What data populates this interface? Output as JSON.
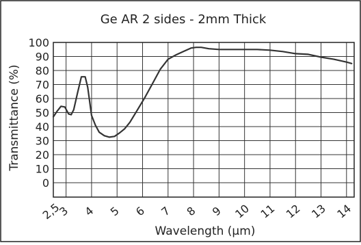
{
  "chart_data": {
    "type": "line",
    "title": "Ge AR 2 sides - 2mm Thick",
    "xlabel": "Wavelength (µm)",
    "ylabel": "Transmittance (%)",
    "xlim": [
      2.5,
      14.3
    ],
    "ylim": [
      0,
      100
    ],
    "x_ticks": [
      2.5,
      3,
      4,
      5,
      6,
      7,
      8,
      9,
      10,
      11,
      12,
      13,
      14
    ],
    "x_tick_labels": [
      "2,5",
      "3",
      "4",
      "5",
      "6",
      "7",
      "8",
      "9",
      "10",
      "11",
      "12",
      "13",
      "14"
    ],
    "y_ticks": [
      0,
      10,
      20,
      30,
      40,
      50,
      60,
      70,
      80,
      90,
      100
    ],
    "y_tick_labels": [
      "0",
      "10",
      "20",
      "30",
      "40",
      "50",
      "60",
      "70",
      "80",
      "90",
      "100"
    ],
    "grid": true,
    "series": [
      {
        "color": "#333333",
        "x": [
          2.5,
          2.65,
          2.8,
          2.95,
          3.1,
          3.2,
          3.3,
          3.45,
          3.6,
          3.75,
          3.85,
          4.0,
          4.15,
          4.3,
          4.5,
          4.7,
          4.9,
          5.1,
          5.3,
          5.5,
          5.8,
          6.1,
          6.4,
          6.7,
          7.0,
          7.3,
          7.6,
          7.9,
          8.1,
          8.3,
          8.6,
          9.0,
          9.5,
          10.0,
          10.5,
          11.0,
          11.5,
          12.0,
          12.5,
          13.0,
          13.5,
          14.0,
          14.2
        ],
        "y": [
          47,
          51,
          54.5,
          54,
          49,
          48.5,
          52,
          64,
          75.5,
          75.5,
          68,
          48,
          41,
          36,
          33.5,
          32.5,
          33,
          35.5,
          38.5,
          43,
          52,
          61,
          71,
          81,
          88,
          91,
          93.5,
          96,
          96.5,
          96.5,
          95.5,
          95,
          95,
          95,
          95,
          94.5,
          93.5,
          92,
          91.5,
          89.5,
          88,
          86,
          85
        ]
      }
    ]
  }
}
